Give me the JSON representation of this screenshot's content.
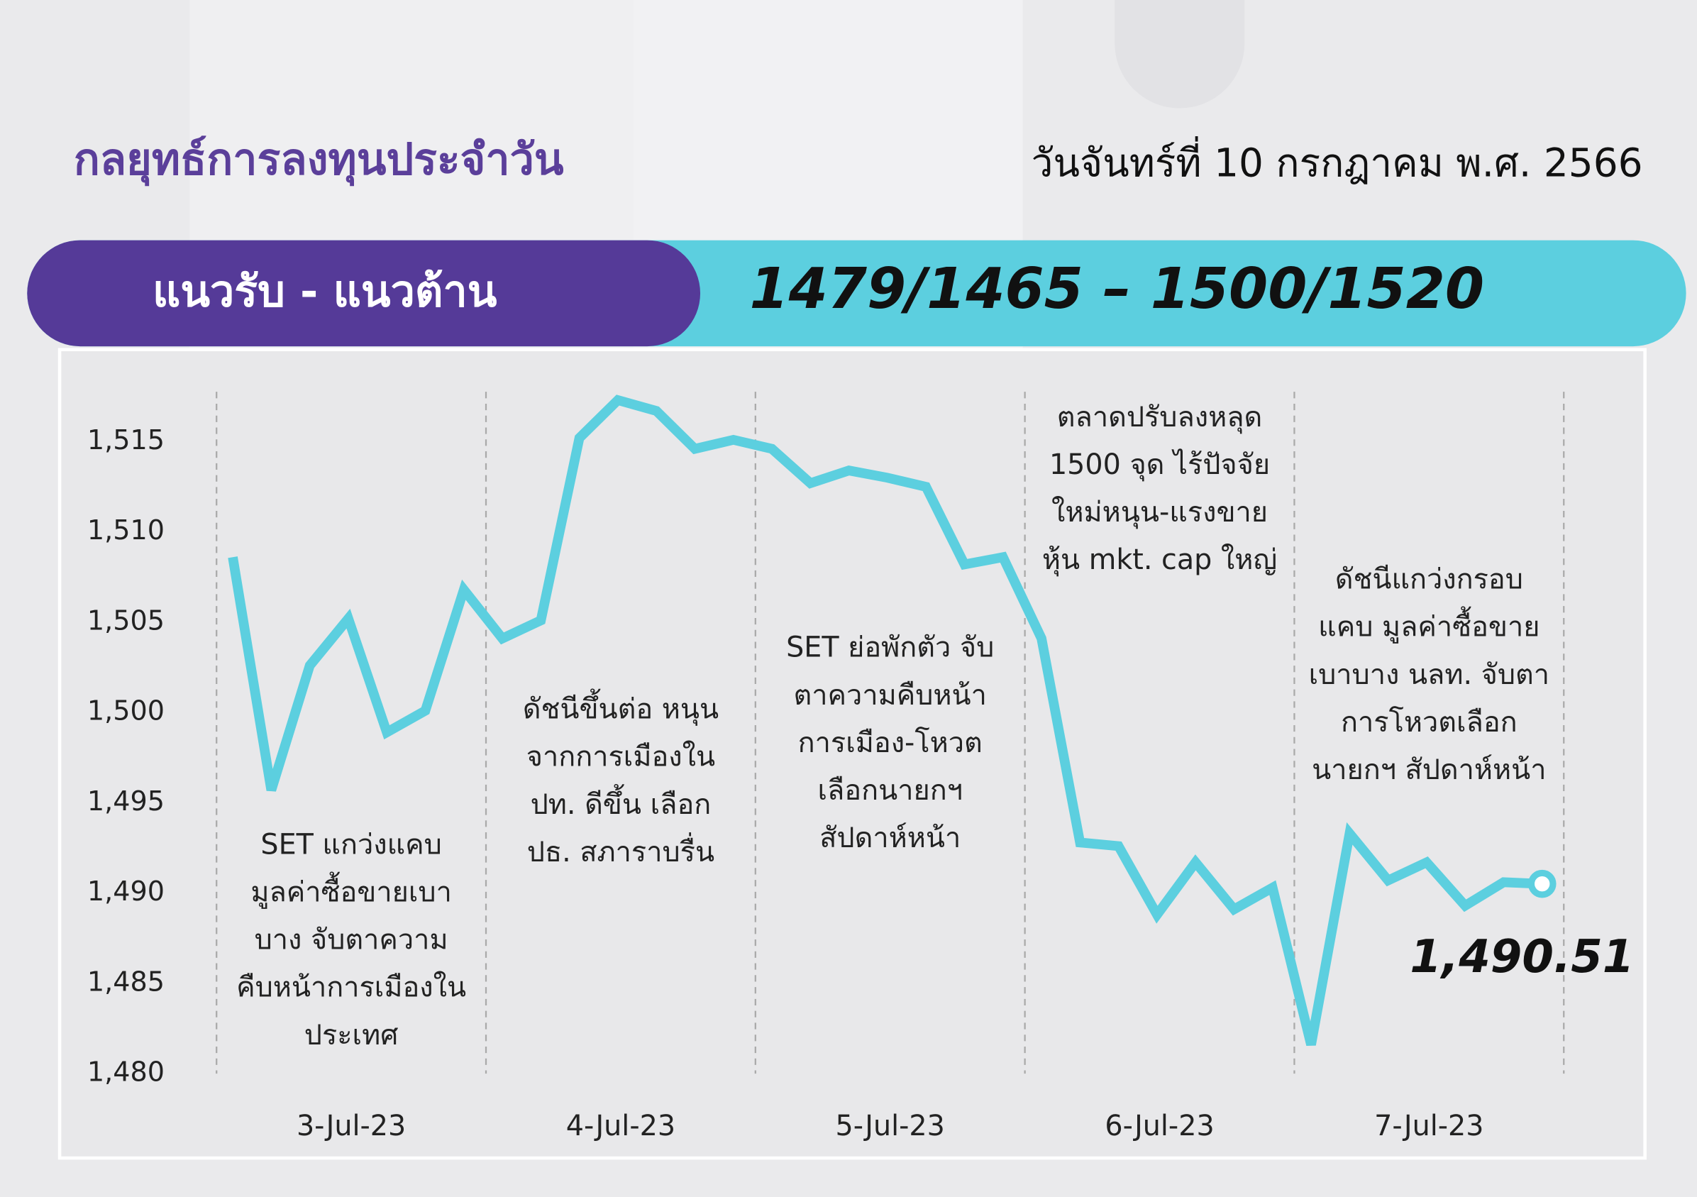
{
  "header": {
    "title": "กลยุทธ์การลงทุนประจำวัน",
    "date": "วันจันทร์ที่ 10 กรกฎาคม พ.ศ. 2566"
  },
  "banner": {
    "label": "แนวรับ - แนวต้าน",
    "value": "1479/1465 – 1500/1520"
  },
  "chart_data": {
    "type": "line",
    "color": "#5ccfdf",
    "values": [
      1508.6,
      1495.7,
      1502.6,
      1505.2,
      1498.9,
      1500.1,
      1506.8,
      1504.1,
      1505.1,
      1515.2,
      1517.3,
      1516.7,
      1514.6,
      1515.1,
      1514.6,
      1512.7,
      1513.4,
      1513.0,
      1512.5,
      1508.2,
      1508.6,
      1504.1,
      1492.8,
      1492.6,
      1488.8,
      1491.7,
      1489.1,
      1490.3,
      1481.6,
      1493.3,
      1490.7,
      1491.7,
      1489.3,
      1490.6,
      1490.51
    ],
    "value_labels": [
      null,
      null,
      null,
      null,
      null,
      null,
      null,
      null,
      null,
      null,
      null,
      null,
      null,
      null,
      null,
      null,
      null,
      null,
      null,
      null,
      null,
      null,
      null,
      null,
      null,
      null,
      null,
      null,
      null,
      null,
      null,
      null,
      null,
      null,
      "1,490.51"
    ],
    "ylim": [
      1480,
      1518
    ],
    "yticks": [
      {
        "value": 1480,
        "label": "1,480"
      },
      {
        "value": 1485,
        "label": "1,485"
      },
      {
        "value": 1490,
        "label": "1,490"
      },
      {
        "value": 1495,
        "label": "1,495"
      },
      {
        "value": 1500,
        "label": "1,500"
      },
      {
        "value": 1505,
        "label": "1,505"
      },
      {
        "value": 1510,
        "label": "1,510"
      },
      {
        "value": 1515,
        "label": "1,515"
      }
    ],
    "days": [
      {
        "label": "3-Jul-23",
        "annotation": [
          "SET แกว่งแคบ",
          "มูลค่าซื้อขายเบา",
          "บาง จับตาความ",
          "คืบหน้าการเมืองใน",
          "ประเทศ"
        ]
      },
      {
        "label": "4-Jul-23",
        "annotation": [
          "ดัชนีขึ้นต่อ หนุน",
          "จากการเมืองใน",
          "ปท. ดีขึ้น เลือก",
          "ปธ. สภาราบรื่น"
        ]
      },
      {
        "label": "5-Jul-23",
        "annotation": [
          "SET  ย่อพักตัว จับ",
          "ตาความคืบหน้า",
          "การเมือง-โหวต",
          "เลือกนายกฯ",
          "สัปดาห์หน้า"
        ]
      },
      {
        "label": "6-Jul-23",
        "annotation": [
          "ตลาดปรับลงหลุด",
          "1500 จุด ไร้ปัจจัย",
          "ใหม่หนุน-แรงขาย",
          "หุ้น mkt. cap ใหญ่"
        ]
      },
      {
        "label": "7-Jul-23",
        "annotation": [
          "ดัชนีแกว่งกรอบ",
          "แคบ มูลค่าซื้อขาย",
          "เบาบาง นลท. จับตา",
          "การโหวตเลือก",
          "นายกฯ สัปดาห์หน้า"
        ]
      }
    ]
  }
}
